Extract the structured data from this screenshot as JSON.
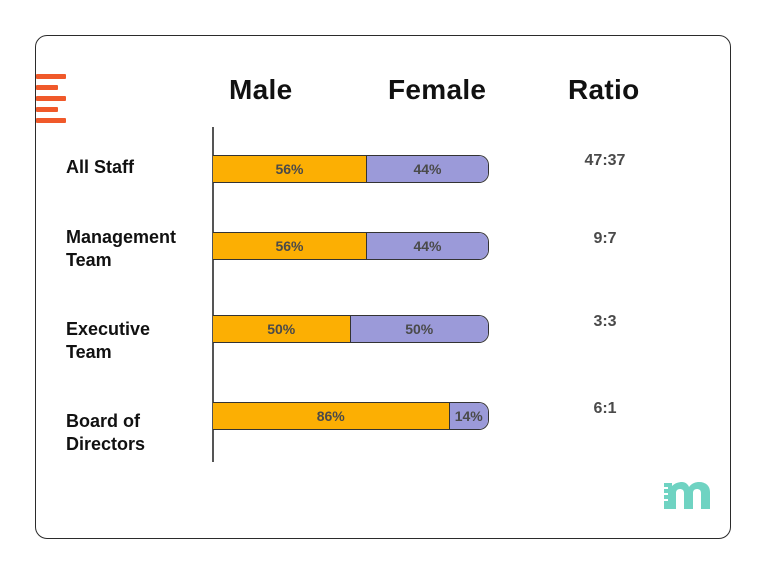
{
  "headers": {
    "male": "Male",
    "female": "Female",
    "ratio": "Ratio"
  },
  "colors": {
    "male": "#fcaf03",
    "female": "#9b9ad9",
    "logo_lines": "#f0592a",
    "brand": "#6fd3c2"
  },
  "chart_data": {
    "type": "bar",
    "orientation": "horizontal",
    "stacked": true,
    "categories": [
      "All Staff",
      "Management\nTeam",
      "Executive\nTeam",
      "Board of\nDirectors"
    ],
    "series": [
      {
        "name": "Male",
        "values": [
          56,
          56,
          50,
          86
        ],
        "labels": [
          "56%",
          "56%",
          "50%",
          "86%"
        ]
      },
      {
        "name": "Female",
        "values": [
          44,
          44,
          50,
          14
        ],
        "labels": [
          "44%",
          "44%",
          "50%",
          "14%"
        ]
      }
    ],
    "ratios": [
      "47:37",
      "9:7",
      "3:3",
      "6:1"
    ],
    "xlim": [
      0,
      100
    ],
    "title": "",
    "xlabel": "",
    "ylabel": ""
  }
}
